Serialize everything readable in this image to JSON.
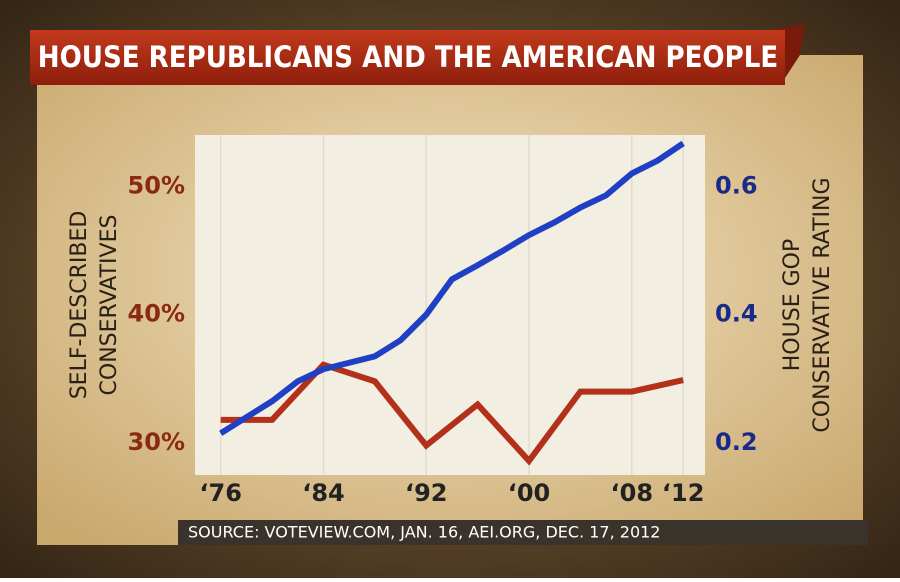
{
  "chart_data": {
    "type": "line",
    "title": "HOUSE REPUBLICANS AND THE AMERICAN PEOPLE",
    "source": "SOURCE: VOTEVIEW.COM, JAN. 16, AEI.ORG, DEC. 17, 2012",
    "y_label": [
      "SELF-DESCRIBED",
      "CONSERVATIVES"
    ],
    "y2_label": [
      "HOUSE GOP",
      "CONSERVATIVE RATING"
    ],
    "xlim": [
      1974,
      2013.7
    ],
    "xticks": [
      {
        "value": 1976,
        "label": "‘76"
      },
      {
        "value": 1984,
        "label": "‘84"
      },
      {
        "value": 1992,
        "label": "‘92"
      },
      {
        "value": 2000,
        "label": "‘00"
      },
      {
        "value": 2008,
        "label": "‘08"
      },
      {
        "value": 2012,
        "label": "‘12"
      }
    ],
    "ylim": [
      27.5,
      54
    ],
    "yticks": [
      {
        "value": 30,
        "label": "30%"
      },
      {
        "value": 40,
        "label": "40%"
      },
      {
        "value": 50,
        "label": "50%"
      }
    ],
    "y2lim": [
      0.15,
      0.68
    ],
    "y2ticks": [
      0.2,
      0.4,
      0.6
    ],
    "grid": true,
    "series": [
      {
        "name": "Self-described conservatives",
        "color": "#b3301a",
        "axis": "y",
        "x": [
          1976,
          1980,
          1984,
          1988,
          1992,
          1996,
          2000,
          2004,
          2008,
          2012
        ],
        "values": [
          31.8,
          31.8,
          36.1,
          34.8,
          29.8,
          33.0,
          28.6,
          34.0,
          34.0,
          34.9
        ]
      },
      {
        "name": "House GOP conservative rating",
        "color": "#1f3fc4",
        "axis": "y2",
        "x": [
          1976,
          1978,
          1980,
          1982,
          1984,
          1986,
          1988,
          1990,
          1992,
          1994,
          1996,
          1998,
          2000,
          2002,
          2004,
          2006,
          2008,
          2010,
          2012
        ],
        "values": [
          0.215,
          0.24,
          0.265,
          0.296,
          0.315,
          0.325,
          0.335,
          0.36,
          0.4,
          0.455,
          0.477,
          0.5,
          0.524,
          0.544,
          0.567,
          0.586,
          0.62,
          0.64,
          0.667
        ]
      }
    ]
  }
}
